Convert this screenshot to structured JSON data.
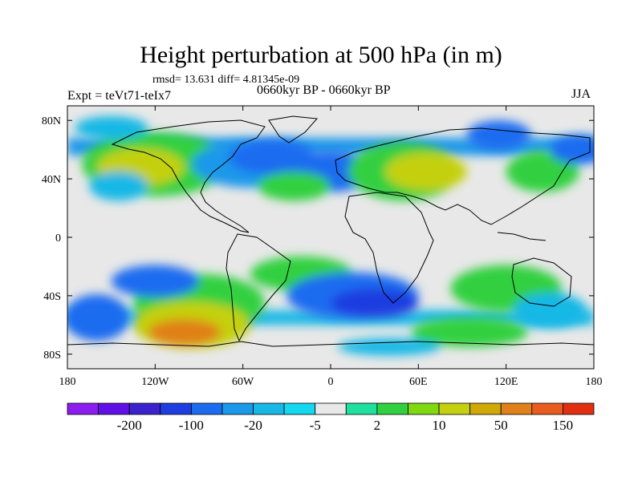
{
  "title": "Height perturbation at 500 hPa (in m)",
  "stats": "rmsd= 13.631  diff= 4.81345e-09",
  "left_label": "Expt = teVt71-teIx7",
  "center_label": "0660kyr BP - 0660kyr BP",
  "right_label": "JJA",
  "lon_ticks": [
    {
      "value": -180,
      "label": "180"
    },
    {
      "value": -120,
      "label": "120W"
    },
    {
      "value": -60,
      "label": "60W"
    },
    {
      "value": 0,
      "label": "0"
    },
    {
      "value": 60,
      "label": "60E"
    },
    {
      "value": 120,
      "label": "120E"
    },
    {
      "value": 180,
      "label": "180"
    }
  ],
  "lat_ticks": [
    {
      "value": 80,
      "label": "80N"
    },
    {
      "value": 40,
      "label": "40N"
    },
    {
      "value": 0,
      "label": "0"
    },
    {
      "value": -40,
      "label": "40S"
    },
    {
      "value": -80,
      "label": "80S"
    }
  ],
  "colorbar": {
    "colors": [
      "#8c1cf0",
      "#6010e6",
      "#3c22cc",
      "#1e3ee0",
      "#1c6cf0",
      "#1a98ea",
      "#18b8e6",
      "#14d8f0",
      "#e8e8e8",
      "#20e0a0",
      "#30d040",
      "#80d810",
      "#c4d010",
      "#d0a808",
      "#e08018",
      "#e85c20",
      "#e03010"
    ],
    "labels": [
      {
        "after_index": 1,
        "text": "-200"
      },
      {
        "after_index": 3,
        "text": "-100"
      },
      {
        "after_index": 5,
        "text": "-20"
      },
      {
        "after_index": 7,
        "text": "-5"
      },
      {
        "after_index": 9,
        "text": "2"
      },
      {
        "after_index": 11,
        "text": "10"
      },
      {
        "after_index": 13,
        "text": "50"
      },
      {
        "after_index": 15,
        "text": "150"
      }
    ]
  },
  "field_blobs": [
    {
      "lon": -120,
      "lat": 50,
      "rx": 50,
      "ry": 22,
      "color": "#30d040"
    },
    {
      "lon": -130,
      "lat": 48,
      "rx": 30,
      "ry": 13,
      "color": "#c4d010"
    },
    {
      "lon": -55,
      "lat": 50,
      "rx": 40,
      "ry": 16,
      "color": "#1a98ea"
    },
    {
      "lon": -40,
      "lat": 55,
      "rx": 30,
      "ry": 12,
      "color": "#1c6cf0"
    },
    {
      "lon": 0,
      "lat": 45,
      "rx": 30,
      "ry": 14,
      "color": "#1c6cf0"
    },
    {
      "lon": 50,
      "lat": 45,
      "rx": 38,
      "ry": 20,
      "color": "#30d040"
    },
    {
      "lon": 65,
      "lat": 45,
      "rx": 28,
      "ry": 13,
      "color": "#c4d010"
    },
    {
      "lon": 115,
      "lat": 70,
      "rx": 22,
      "ry": 10,
      "color": "#1c6cf0"
    },
    {
      "lon": 145,
      "lat": 45,
      "rx": 25,
      "ry": 14,
      "color": "#30d040"
    },
    {
      "lon": -25,
      "lat": 35,
      "rx": 25,
      "ry": 10,
      "color": "#30d040"
    },
    {
      "lon": -150,
      "lat": 75,
      "rx": 25,
      "ry": 8,
      "color": "#18b8e6"
    },
    {
      "lon": -145,
      "lat": 35,
      "rx": 20,
      "ry": 10,
      "color": "#18b8e6"
    },
    {
      "lon": -90,
      "lat": -45,
      "rx": 45,
      "ry": 20,
      "color": "#30d040"
    },
    {
      "lon": -95,
      "lat": -60,
      "rx": 40,
      "ry": 16,
      "color": "#c4d010"
    },
    {
      "lon": -100,
      "lat": -65,
      "rx": 25,
      "ry": 9,
      "color": "#e08018"
    },
    {
      "lon": -120,
      "lat": -30,
      "rx": 30,
      "ry": 11,
      "color": "#1c6cf0"
    },
    {
      "lon": -160,
      "lat": -55,
      "rx": 22,
      "ry": 16,
      "color": "#1c6cf0"
    },
    {
      "lon": -20,
      "lat": -25,
      "rx": 35,
      "ry": 12,
      "color": "#30d040"
    },
    {
      "lon": 15,
      "lat": -40,
      "rx": 45,
      "ry": 16,
      "color": "#1c6cf0"
    },
    {
      "lon": 30,
      "lat": -45,
      "rx": 30,
      "ry": 10,
      "color": "#1e3ee0"
    },
    {
      "lon": 120,
      "lat": -35,
      "rx": 38,
      "ry": 16,
      "color": "#30d040"
    },
    {
      "lon": 150,
      "lat": -50,
      "rx": 25,
      "ry": 12,
      "color": "#18b8e6"
    },
    {
      "lon": 95,
      "lat": -65,
      "rx": 40,
      "ry": 10,
      "color": "#30d040"
    },
    {
      "lon": 40,
      "lat": -75,
      "rx": 35,
      "ry": 6,
      "color": "#18b8e6"
    },
    {
      "lon": 170,
      "lat": 60,
      "rx": 20,
      "ry": 10,
      "color": "#1c6cf0"
    }
  ],
  "field_bands": [
    {
      "lat": 62,
      "width": 12,
      "color": "#1a98ea"
    },
    {
      "lat": -55,
      "width": 10,
      "color": "#18b8e6"
    }
  ]
}
